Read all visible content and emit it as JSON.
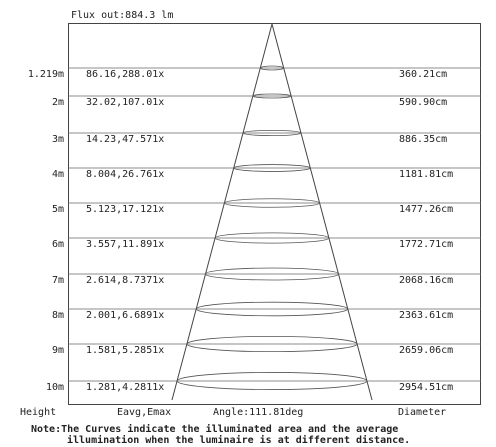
{
  "flux_label": "Flux out:884.3 lm",
  "rows": [
    {
      "height": "1.219m",
      "illum": "86.16,288.01x",
      "diameter": "360.21cm"
    },
    {
      "height": "2m",
      "illum": "32.02,107.01x",
      "diameter": "590.90cm"
    },
    {
      "height": "3m",
      "illum": "14.23,47.571x",
      "diameter": "886.35cm"
    },
    {
      "height": "4m",
      "illum": "8.004,26.761x",
      "diameter": "1181.81cm"
    },
    {
      "height": "5m",
      "illum": "5.123,17.121x",
      "diameter": "1477.26cm"
    },
    {
      "height": "6m",
      "illum": "3.557,11.891x",
      "diameter": "1772.71cm"
    },
    {
      "height": "7m",
      "illum": "2.614,8.7371x",
      "diameter": "2068.16cm"
    },
    {
      "height": "8m",
      "illum": "2.001,6.6891x",
      "diameter": "2363.61cm"
    },
    {
      "height": "9m",
      "illum": "1.581,5.2851x",
      "diameter": "2659.06cm"
    },
    {
      "height": "10m",
      "illum": "1.281,4.2811x",
      "diameter": "2954.51cm"
    }
  ],
  "footer": {
    "height_label": "Height",
    "eavg_label": "Eavg,Emax",
    "angle_label": "Angle:111.81deg",
    "diameter_label": "Diameter"
  },
  "note": {
    "line1": "Note:The Curves indicate the illuminated area and the average",
    "line2": "illumination when the luminaire is at different distance."
  }
}
